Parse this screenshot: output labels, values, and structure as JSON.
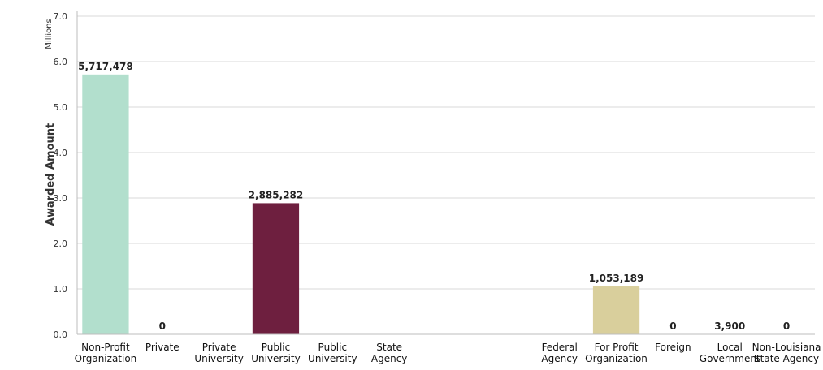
{
  "chart_data": {
    "type": "bar",
    "ylabel": "Awarded Amount",
    "units": "Millions",
    "ylim": [
      0,
      7
    ],
    "yticks": [
      "0.0",
      "1.0",
      "2.0",
      "3.0",
      "4.0",
      "5.0",
      "6.0",
      "7.0"
    ],
    "grid": true,
    "categories": [
      "Non-Profit Organization",
      "Private",
      "Private University",
      "Public University",
      "Public University",
      "State Agency",
      "",
      "",
      "Federal Agency",
      "For Profit Organization",
      "Foreign",
      "Local Government",
      "Non-Louisiana State Agency"
    ],
    "values": [
      5717478,
      0,
      0,
      2885282,
      0,
      0,
      0,
      0,
      0,
      1053189,
      0,
      3900,
      0
    ],
    "value_labels": [
      "5,717,478",
      "0",
      "",
      "2,885,282",
      "",
      "",
      "",
      "",
      "",
      "1,053,189",
      "0",
      "3,900",
      "0"
    ],
    "colors": [
      "#b2dfcd",
      "#8fb54a",
      "#8fb54a",
      "#6e1f3f",
      "#5f8f2a",
      "#9e9e9e",
      "",
      "",
      "#9e9e9e",
      "#d9cf9c",
      "#9e9e9e",
      "#9e9e9e",
      "#9e9e9e"
    ]
  }
}
